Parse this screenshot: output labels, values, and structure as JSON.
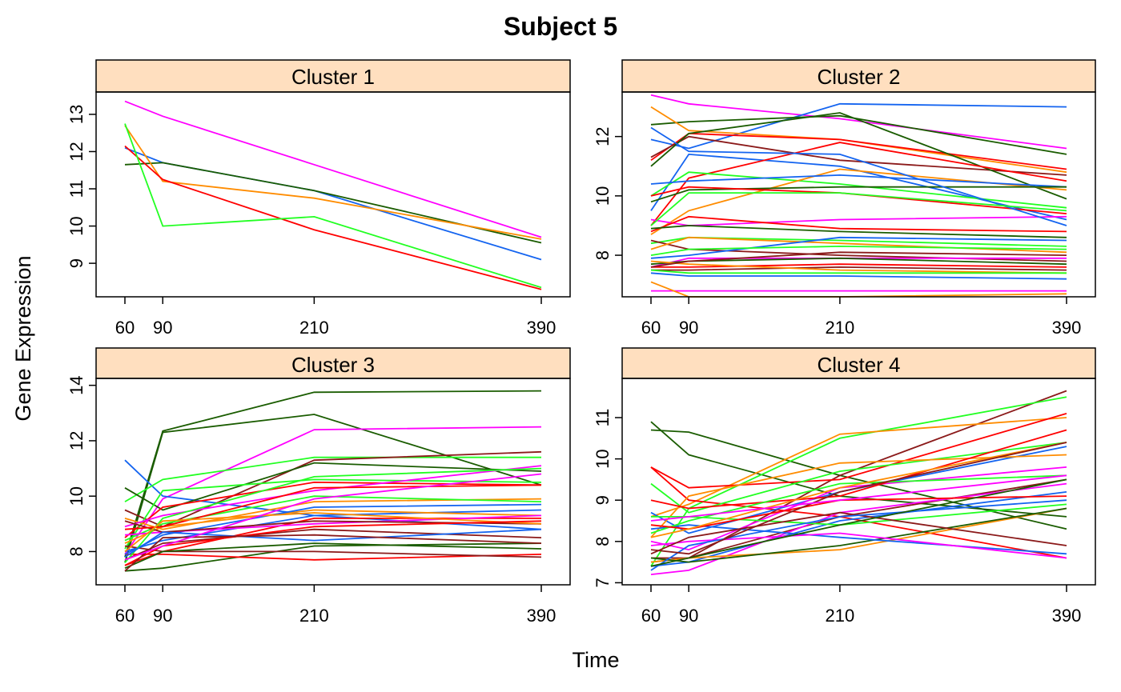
{
  "title": "Subject 5",
  "xlabel": "Time",
  "ylabel": "Gene Expression",
  "chart_data": [
    {
      "type": "line",
      "panel": "Cluster 1",
      "x": [
        60,
        90,
        210,
        390
      ],
      "xlim": [
        60,
        390
      ],
      "ylim": [
        8.1,
        13.6
      ],
      "yticks": [
        9,
        10,
        11,
        12,
        13
      ],
      "series": [
        {
          "color": "#ff00ff",
          "values": [
            13.35,
            12.95,
            11.65,
            9.7
          ]
        },
        {
          "color": "#1464f0",
          "values": [
            12.1,
            11.7,
            10.95,
            9.1
          ]
        },
        {
          "color": "#1a5c00",
          "values": [
            11.65,
            11.7,
            10.95,
            9.55
          ]
        },
        {
          "color": "#ff8c00",
          "values": [
            12.7,
            11.2,
            10.75,
            9.65
          ]
        },
        {
          "color": "#ff0000",
          "values": [
            12.15,
            11.25,
            9.9,
            8.3
          ]
        },
        {
          "color": "#22ff22",
          "values": [
            12.75,
            10.0,
            10.25,
            8.35
          ]
        }
      ]
    },
    {
      "type": "line",
      "panel": "Cluster 2",
      "x": [
        60,
        90,
        210,
        390
      ],
      "xlim": [
        60,
        390
      ],
      "ylim": [
        6.6,
        13.5
      ],
      "yticks": [
        8,
        10,
        12
      ],
      "series": [
        {
          "color": "#ff00ff",
          "values": [
            13.4,
            13.1,
            12.6,
            11.6
          ]
        },
        {
          "color": "#1464f0",
          "values": [
            11.9,
            11.6,
            13.1,
            13.0
          ]
        },
        {
          "color": "#1a5c00",
          "values": [
            12.4,
            12.5,
            12.7,
            11.4
          ]
        },
        {
          "color": "#ff8c00",
          "values": [
            13.0,
            12.2,
            11.9,
            10.8
          ]
        },
        {
          "color": "#ff0000",
          "values": [
            11.2,
            12.1,
            11.9,
            10.9
          ]
        },
        {
          "color": "#8b1a1a",
          "values": [
            11.3,
            12.0,
            11.2,
            10.7
          ]
        },
        {
          "color": "#1a5c00",
          "values": [
            11.0,
            12.1,
            12.8,
            9.9
          ]
        },
        {
          "color": "#1464f0",
          "values": [
            9.5,
            11.4,
            11.0,
            9.2
          ]
        },
        {
          "color": "#ff0000",
          "values": [
            9.0,
            10.6,
            11.8,
            10.5
          ]
        },
        {
          "color": "#22ff22",
          "values": [
            10.0,
            10.8,
            10.4,
            9.6
          ]
        },
        {
          "color": "#ff8c00",
          "values": [
            8.7,
            9.5,
            10.9,
            10.2
          ]
        },
        {
          "color": "#ff00ff",
          "values": [
            9.2,
            9.0,
            9.2,
            9.3
          ]
        },
        {
          "color": "#1464f0",
          "values": [
            10.4,
            10.5,
            10.7,
            10.3
          ]
        },
        {
          "color": "#1a5c00",
          "values": [
            9.8,
            10.2,
            10.3,
            10.3
          ]
        },
        {
          "color": "#ff0000",
          "values": [
            8.8,
            9.3,
            8.9,
            8.8
          ]
        },
        {
          "color": "#22ff22",
          "values": [
            8.4,
            8.6,
            8.5,
            8.3
          ]
        },
        {
          "color": "#8b1a1a",
          "values": [
            8.5,
            8.2,
            8.0,
            7.8
          ]
        },
        {
          "color": "#ff8c00",
          "values": [
            8.2,
            8.6,
            8.4,
            8.1
          ]
        },
        {
          "color": "#1464f0",
          "values": [
            7.9,
            8.0,
            8.6,
            8.5
          ]
        },
        {
          "color": "#ff00ff",
          "values": [
            7.6,
            7.9,
            7.9,
            7.9
          ]
        },
        {
          "color": "#22ff22",
          "values": [
            8.0,
            8.2,
            8.3,
            8.2
          ]
        },
        {
          "color": "#1a5c00",
          "values": [
            7.7,
            7.8,
            7.9,
            7.7
          ]
        },
        {
          "color": "#ff0000",
          "values": [
            7.6,
            7.6,
            7.7,
            7.6
          ]
        },
        {
          "color": "#8b1a1a",
          "values": [
            7.5,
            7.5,
            7.6,
            7.5
          ]
        },
        {
          "color": "#ff8c00",
          "values": [
            7.8,
            7.7,
            7.5,
            7.4
          ]
        },
        {
          "color": "#1464f0",
          "values": [
            7.4,
            7.3,
            7.3,
            7.2
          ]
        },
        {
          "color": "#ff00ff",
          "values": [
            6.8,
            6.8,
            6.8,
            6.8
          ]
        },
        {
          "color": "#ff8c00",
          "values": [
            7.1,
            6.6,
            6.6,
            6.7
          ]
        },
        {
          "color": "#22ff22",
          "values": [
            7.5,
            7.4,
            7.4,
            7.4
          ]
        },
        {
          "color": "#1a5c00",
          "values": [
            8.9,
            9.0,
            8.8,
            8.6
          ]
        },
        {
          "color": "#ff0000",
          "values": [
            10.0,
            10.3,
            10.1,
            9.4
          ]
        },
        {
          "color": "#1464f0",
          "values": [
            12.3,
            11.5,
            11.4,
            9.0
          ]
        },
        {
          "color": "#8b1a1a",
          "values": [
            7.6,
            7.8,
            8.1,
            8.0
          ]
        },
        {
          "color": "#22ff22",
          "values": [
            9.0,
            10.1,
            10.1,
            9.5
          ]
        }
      ]
    },
    {
      "type": "line",
      "panel": "Cluster 3",
      "x": [
        60,
        90,
        210,
        390
      ],
      "xlim": [
        60,
        390
      ],
      "ylim": [
        6.8,
        14.25
      ],
      "yticks": [
        8,
        10,
        12,
        14
      ],
      "series": [
        {
          "color": "#1a5c00",
          "values": [
            7.8,
            12.35,
            13.75,
            13.8
          ]
        },
        {
          "color": "#1a5c00",
          "values": [
            7.6,
            12.3,
            12.95,
            10.4
          ]
        },
        {
          "color": "#ff00ff",
          "values": [
            7.9,
            9.9,
            12.4,
            12.5
          ]
        },
        {
          "color": "#1464f0",
          "values": [
            11.3,
            10.0,
            9.3,
            8.8
          ]
        },
        {
          "color": "#22ff22",
          "values": [
            9.8,
            10.6,
            11.4,
            11.4
          ]
        },
        {
          "color": "#8b1a1a",
          "values": [
            9.5,
            8.9,
            11.3,
            11.6
          ]
        },
        {
          "color": "#1a5c00",
          "values": [
            10.3,
            9.5,
            11.2,
            10.9
          ]
        },
        {
          "color": "#ff0000",
          "values": [
            8.5,
            9.6,
            10.5,
            10.4
          ]
        },
        {
          "color": "#22ff22",
          "values": [
            8.1,
            10.2,
            10.6,
            10.5
          ]
        },
        {
          "color": "#ff8c00",
          "values": [
            9.2,
            8.8,
            9.8,
            9.9
          ]
        },
        {
          "color": "#1464f0",
          "values": [
            8.0,
            8.4,
            9.3,
            9.5
          ]
        },
        {
          "color": "#ff00ff",
          "values": [
            8.9,
            9.3,
            10.2,
            11.1
          ]
        },
        {
          "color": "#8b1a1a",
          "values": [
            7.7,
            8.3,
            8.8,
            8.5
          ]
        },
        {
          "color": "#ff0000",
          "values": [
            7.5,
            8.0,
            9.2,
            9.2
          ]
        },
        {
          "color": "#1a5c00",
          "values": [
            7.3,
            7.4,
            8.2,
            8.3
          ]
        },
        {
          "color": "#ff0000",
          "values": [
            7.9,
            7.9,
            7.7,
            7.9
          ]
        },
        {
          "color": "#8b1a1a",
          "values": [
            8.2,
            8.0,
            8.0,
            7.8
          ]
        },
        {
          "color": "#22ff22",
          "values": [
            8.4,
            9.0,
            10.0,
            9.8
          ]
        },
        {
          "color": "#ff8c00",
          "values": [
            8.3,
            8.9,
            9.5,
            9.3
          ]
        },
        {
          "color": "#1464f0",
          "values": [
            7.9,
            8.6,
            9.6,
            9.7
          ]
        },
        {
          "color": "#ff00ff",
          "values": [
            8.6,
            8.7,
            9.0,
            9.3
          ]
        },
        {
          "color": "#8b1a1a",
          "values": [
            9.1,
            8.7,
            9.1,
            9.0
          ]
        },
        {
          "color": "#ff0000",
          "values": [
            8.8,
            8.9,
            10.3,
            10.4
          ]
        },
        {
          "color": "#1a5c00",
          "values": [
            7.4,
            8.0,
            8.3,
            8.1
          ]
        },
        {
          "color": "#22ff22",
          "values": [
            7.6,
            9.2,
            10.7,
            11.0
          ]
        },
        {
          "color": "#1464f0",
          "values": [
            7.8,
            8.7,
            8.4,
            8.8
          ]
        },
        {
          "color": "#ff8c00",
          "values": [
            8.0,
            9.1,
            9.4,
            9.0
          ]
        },
        {
          "color": "#ff0000",
          "values": [
            7.5,
            8.2,
            8.9,
            9.1
          ]
        },
        {
          "color": "#8b1a1a",
          "values": [
            7.3,
            8.5,
            8.6,
            8.3
          ]
        },
        {
          "color": "#ff00ff",
          "values": [
            7.7,
            8.2,
            9.9,
            10.8
          ]
        }
      ]
    },
    {
      "type": "line",
      "panel": "Cluster 4",
      "x": [
        60,
        90,
        210,
        390
      ],
      "xlim": [
        60,
        390
      ],
      "ylim": [
        6.95,
        11.95
      ],
      "yticks": [
        7,
        8,
        9,
        10,
        11
      ],
      "series": [
        {
          "color": "#1a5c00",
          "values": [
            10.9,
            10.1,
            9.1,
            8.6
          ]
        },
        {
          "color": "#1a5c00",
          "values": [
            10.7,
            10.65,
            9.6,
            8.3
          ]
        },
        {
          "color": "#8b1a1a",
          "values": [
            7.5,
            7.6,
            9.6,
            11.65
          ]
        },
        {
          "color": "#22ff22",
          "values": [
            7.4,
            8.8,
            10.5,
            11.5
          ]
        },
        {
          "color": "#ff8c00",
          "values": [
            8.6,
            8.9,
            10.6,
            11.0
          ]
        },
        {
          "color": "#ff0000",
          "values": [
            9.8,
            9.3,
            9.5,
            11.1
          ]
        },
        {
          "color": "#ff0000",
          "values": [
            9.8,
            9.0,
            8.6,
            7.6
          ]
        },
        {
          "color": "#22ff22",
          "values": [
            9.4,
            8.7,
            9.7,
            10.4
          ]
        },
        {
          "color": "#1464f0",
          "values": [
            8.7,
            8.2,
            9.2,
            10.3
          ]
        },
        {
          "color": "#ff00ff",
          "values": [
            8.0,
            7.8,
            9.3,
            9.8
          ]
        },
        {
          "color": "#ff8c00",
          "values": [
            8.1,
            9.1,
            9.9,
            10.1
          ]
        },
        {
          "color": "#8b1a1a",
          "values": [
            7.6,
            7.6,
            8.6,
            9.5
          ]
        },
        {
          "color": "#1464f0",
          "values": [
            7.4,
            7.5,
            8.5,
            9.2
          ]
        },
        {
          "color": "#ff00ff",
          "values": [
            7.2,
            7.3,
            8.7,
            9.4
          ]
        },
        {
          "color": "#ff8c00",
          "values": [
            7.5,
            7.6,
            7.8,
            8.8
          ]
        },
        {
          "color": "#1a5c00",
          "values": [
            7.6,
            7.5,
            7.9,
            8.8
          ]
        },
        {
          "color": "#22ff22",
          "values": [
            8.6,
            8.6,
            8.4,
            8.9
          ]
        },
        {
          "color": "#ff0000",
          "values": [
            9.0,
            8.8,
            9.1,
            10.7
          ]
        },
        {
          "color": "#1464f0",
          "values": [
            8.3,
            8.4,
            8.1,
            7.7
          ]
        },
        {
          "color": "#ff00ff",
          "values": [
            7.9,
            8.0,
            8.2,
            7.6
          ]
        },
        {
          "color": "#8b1a1a",
          "values": [
            7.7,
            8.1,
            8.7,
            7.9
          ]
        },
        {
          "color": "#22ff22",
          "values": [
            8.2,
            8.5,
            9.4,
            9.6
          ]
        },
        {
          "color": "#ff0000",
          "values": [
            8.4,
            8.3,
            9.0,
            9.1
          ]
        },
        {
          "color": "#1464f0",
          "values": [
            7.3,
            7.9,
            8.6,
            9.0
          ]
        },
        {
          "color": "#ff8c00",
          "values": [
            8.1,
            8.3,
            9.3,
            10.4
          ]
        },
        {
          "color": "#8b1a1a",
          "values": [
            7.8,
            7.7,
            9.2,
            10.4
          ]
        },
        {
          "color": "#1a5c00",
          "values": [
            7.4,
            7.6,
            8.4,
            9.5
          ]
        },
        {
          "color": "#ff00ff",
          "values": [
            8.5,
            8.6,
            9.0,
            9.6
          ]
        }
      ]
    }
  ]
}
